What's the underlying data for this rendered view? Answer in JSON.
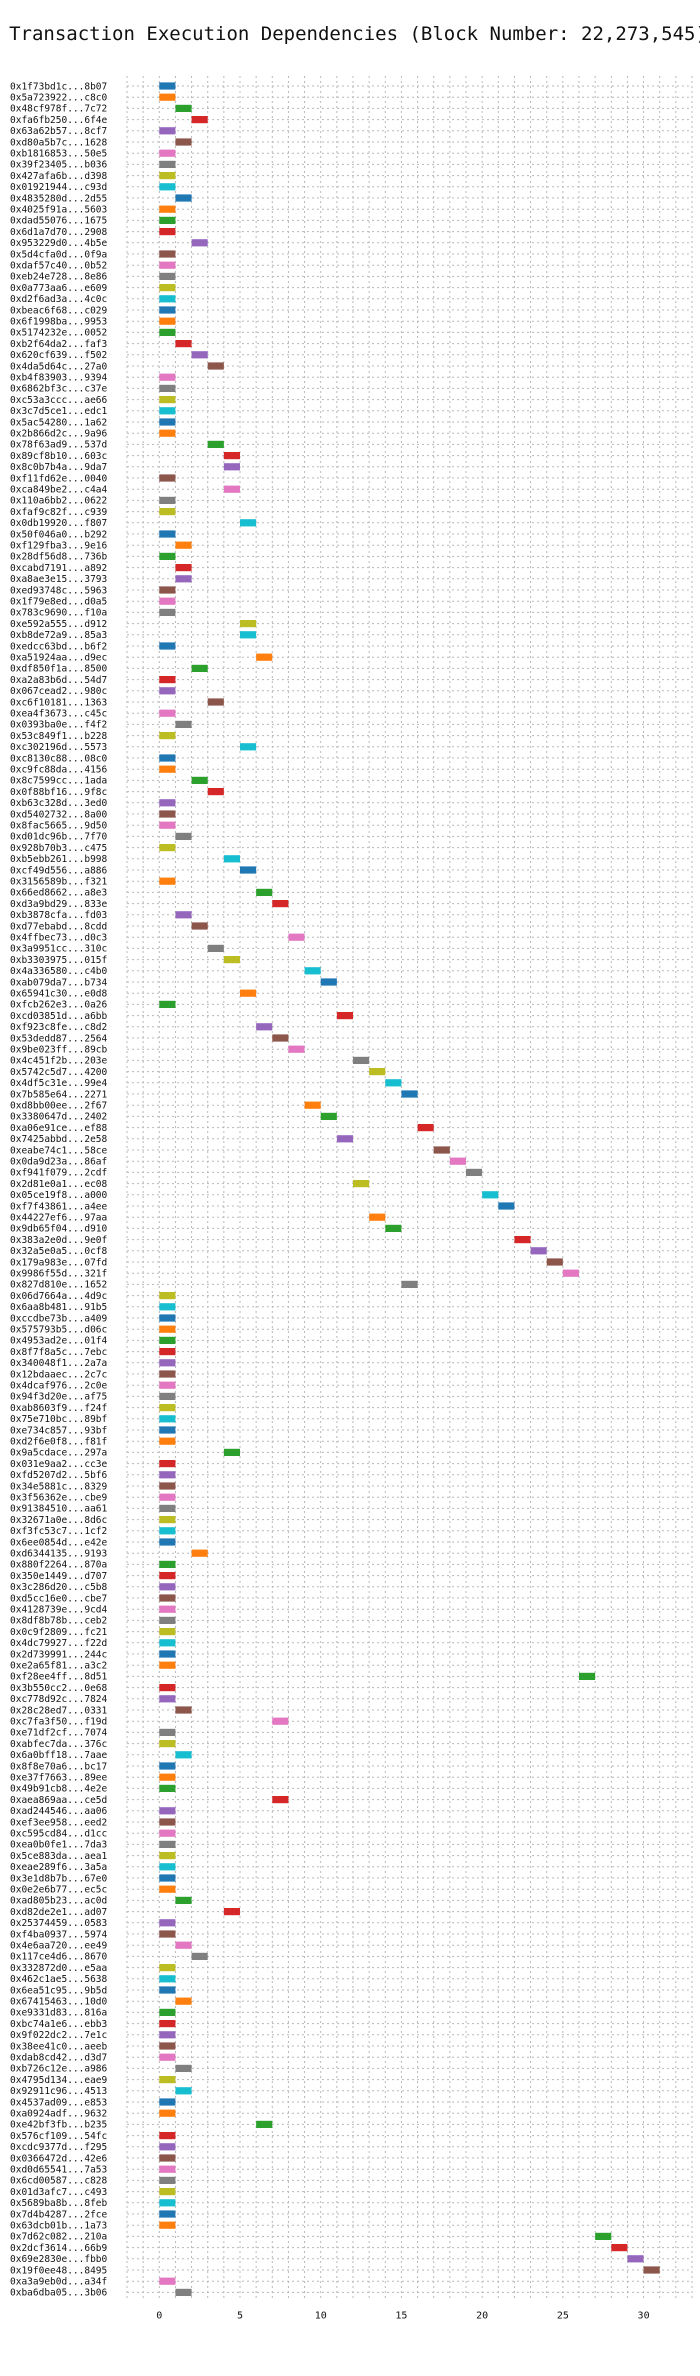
{
  "chart_data": {
    "type": "bar",
    "orientation": "horizontal-gantt",
    "title": "Transaction Execution Dependencies (Block Number: 22,273,545)",
    "xlim": [
      -2,
      33
    ],
    "xticks": [
      0,
      5,
      10,
      15,
      20,
      25,
      30
    ],
    "grid": true,
    "palette": [
      "#1f77b4",
      "#ff7f0e",
      "#2ca02c",
      "#d62728",
      "#9467bd",
      "#8c564b",
      "#e377c2",
      "#7f7f7f",
      "#bcbd22",
      "#17becf"
    ],
    "bar_width": 1.0,
    "transactions": [
      {
        "label": "0x1f73bd1c...8b07",
        "start": 0
      },
      {
        "label": "0x5a723922...c8c0",
        "start": 0
      },
      {
        "label": "0x48cf978f...7c72",
        "start": 1
      },
      {
        "label": "0xfa6fb250...6f4e",
        "start": 2
      },
      {
        "label": "0x63a62b57...8cf7",
        "start": 0
      },
      {
        "label": "0xd80a5b7c...1628",
        "start": 1
      },
      {
        "label": "0xb1816853...50e5",
        "start": 0
      },
      {
        "label": "0x39f23405...b036",
        "start": 0
      },
      {
        "label": "0x427afa6b...d398",
        "start": 0
      },
      {
        "label": "0x01921944...c93d",
        "start": 0
      },
      {
        "label": "0x4835280d...2d55",
        "start": 1
      },
      {
        "label": "0x4025f91a...5603",
        "start": 0
      },
      {
        "label": "0xdad55076...1675",
        "start": 0
      },
      {
        "label": "0x6d1a7d70...2908",
        "start": 0
      },
      {
        "label": "0x953229d0...4b5e",
        "start": 2
      },
      {
        "label": "0x5d4cfa0d...0f9a",
        "start": 0
      },
      {
        "label": "0xdaf57c40...0b52",
        "start": 0
      },
      {
        "label": "0xeb24e728...8e86",
        "start": 0
      },
      {
        "label": "0x0a773aa6...e609",
        "start": 0
      },
      {
        "label": "0xd2f6ad3a...4c0c",
        "start": 0
      },
      {
        "label": "0xbeac6f68...c029",
        "start": 0
      },
      {
        "label": "0x6f1998ba...9953",
        "start": 0
      },
      {
        "label": "0x5174232e...0052",
        "start": 0
      },
      {
        "label": "0xb2f64da2...faf3",
        "start": 1
      },
      {
        "label": "0x620cf639...f502",
        "start": 2
      },
      {
        "label": "0x4da5d64c...27a0",
        "start": 3
      },
      {
        "label": "0xb4f83903...9394",
        "start": 0
      },
      {
        "label": "0x6862bf3c...c37e",
        "start": 0
      },
      {
        "label": "0xc53a3ccc...ae66",
        "start": 0
      },
      {
        "label": "0x3c7d5ce1...edc1",
        "start": 0
      },
      {
        "label": "0x5ac54280...1a62",
        "start": 0
      },
      {
        "label": "0x2b866d2c...9a96",
        "start": 0
      },
      {
        "label": "0x78f63ad9...537d",
        "start": 3
      },
      {
        "label": "0x89cf8b10...603c",
        "start": 4
      },
      {
        "label": "0x8c0b7b4a...9da7",
        "start": 4
      },
      {
        "label": "0xf11fd62e...0040",
        "start": 0
      },
      {
        "label": "0xca849be2...c4a4",
        "start": 4
      },
      {
        "label": "0x110a6bb2...0622",
        "start": 0
      },
      {
        "label": "0xfaf9c82f...c939",
        "start": 0
      },
      {
        "label": "0x0db19920...f807",
        "start": 5
      },
      {
        "label": "0x50f046a0...b292",
        "start": 0
      },
      {
        "label": "0xf129fba3...9e16",
        "start": 1
      },
      {
        "label": "0x28df56d8...736b",
        "start": 0
      },
      {
        "label": "0xcabd7191...a892",
        "start": 1
      },
      {
        "label": "0xa8ae3e15...3793",
        "start": 1
      },
      {
        "label": "0xed93748c...5963",
        "start": 0
      },
      {
        "label": "0x1f79e8ed...d0a5",
        "start": 0
      },
      {
        "label": "0x783c9690...f10a",
        "start": 0
      },
      {
        "label": "0xe592a555...d912",
        "start": 5
      },
      {
        "label": "0xb8de72a9...85a3",
        "start": 5
      },
      {
        "label": "0xedcc63bd...b6f2",
        "start": 0
      },
      {
        "label": "0xa51924aa...d9ec",
        "start": 6
      },
      {
        "label": "0xdf850f1a...8500",
        "start": 2
      },
      {
        "label": "0xa2a83b6d...54d7",
        "start": 0
      },
      {
        "label": "0x067cead2...980c",
        "start": 0
      },
      {
        "label": "0xc6f10181...1363",
        "start": 3
      },
      {
        "label": "0xea4f3673...c45c",
        "start": 0
      },
      {
        "label": "0x0393ba0e...f4f2",
        "start": 1
      },
      {
        "label": "0x53c849f1...b228",
        "start": 0
      },
      {
        "label": "0xc302196d...5573",
        "start": 5
      },
      {
        "label": "0xc8130c88...08c0",
        "start": 0
      },
      {
        "label": "0xc9fc88da...4156",
        "start": 0
      },
      {
        "label": "0x8c7599cc...1ada",
        "start": 2
      },
      {
        "label": "0x0f88bf16...9f8c",
        "start": 3
      },
      {
        "label": "0xb63c328d...3ed0",
        "start": 0
      },
      {
        "label": "0xd5402732...8a00",
        "start": 0
      },
      {
        "label": "0x8fac5665...9d50",
        "start": 0
      },
      {
        "label": "0xd01dc96b...7f70",
        "start": 1
      },
      {
        "label": "0x928b70b3...c475",
        "start": 0
      },
      {
        "label": "0xb5ebb261...b998",
        "start": 4
      },
      {
        "label": "0xcf49d556...a886",
        "start": 5
      },
      {
        "label": "0x3156589b...f321",
        "start": 0
      },
      {
        "label": "0x66ed8662...a8e3",
        "start": 6
      },
      {
        "label": "0xd3a9bd29...833e",
        "start": 7
      },
      {
        "label": "0xb3878cfa...fd03",
        "start": 1
      },
      {
        "label": "0xd77ebabd...8cdd",
        "start": 2
      },
      {
        "label": "0x4ffbec73...d0c3",
        "start": 8
      },
      {
        "label": "0x3a9951cc...310c",
        "start": 3
      },
      {
        "label": "0xb3303975...015f",
        "start": 4
      },
      {
        "label": "0x4a336580...c4b0",
        "start": 9
      },
      {
        "label": "0xab079da7...b734",
        "start": 10
      },
      {
        "label": "0x65941c30...e0d8",
        "start": 5
      },
      {
        "label": "0xfcb262e3...0a26",
        "start": 0
      },
      {
        "label": "0xcd03851d...a6bb",
        "start": 11
      },
      {
        "label": "0xf923c8fe...c8d2",
        "start": 6
      },
      {
        "label": "0x53dedd87...2564",
        "start": 7
      },
      {
        "label": "0x9be023ff...89cb",
        "start": 8
      },
      {
        "label": "0x4c451f2b...203e",
        "start": 12
      },
      {
        "label": "0x5742c5d7...4200",
        "start": 13
      },
      {
        "label": "0x4df5c31e...99e4",
        "start": 14
      },
      {
        "label": "0x7b585e64...2271",
        "start": 15
      },
      {
        "label": "0xd8bb00ee...2f67",
        "start": 9
      },
      {
        "label": "0x3380647d...2402",
        "start": 10
      },
      {
        "label": "0xa06e91ce...ef88",
        "start": 16
      },
      {
        "label": "0x7425abbd...2e58",
        "start": 11
      },
      {
        "label": "0xeabe74c1...58ce",
        "start": 17
      },
      {
        "label": "0x0da9d23a...86af",
        "start": 18
      },
      {
        "label": "0xf941f079...2cdf",
        "start": 19
      },
      {
        "label": "0x2d81e0a1...ec08",
        "start": 12
      },
      {
        "label": "0x05ce19f8...a000",
        "start": 20
      },
      {
        "label": "0xf7f43861...a4ee",
        "start": 21
      },
      {
        "label": "0x44227ef6...97aa",
        "start": 13
      },
      {
        "label": "0x9db65f04...d910",
        "start": 14
      },
      {
        "label": "0x383a2e0d...9e0f",
        "start": 22
      },
      {
        "label": "0x32a5e0a5...0cf8",
        "start": 23
      },
      {
        "label": "0x179a983e...07fd",
        "start": 24
      },
      {
        "label": "0x9986f55d...321f",
        "start": 25
      },
      {
        "label": "0x827d810e...1652",
        "start": 15
      },
      {
        "label": "0x06d7664a...4d9c",
        "start": 0
      },
      {
        "label": "0x6aa8b481...91b5",
        "start": 0
      },
      {
        "label": "0xccdbe73b...a409",
        "start": 0
      },
      {
        "label": "0x575793b5...d06c",
        "start": 0
      },
      {
        "label": "0x4953ad2e...01f4",
        "start": 0
      },
      {
        "label": "0x8f7f8a5c...7ebc",
        "start": 0
      },
      {
        "label": "0x340048f1...2a7a",
        "start": 0
      },
      {
        "label": "0x12bdaaec...2c7c",
        "start": 0
      },
      {
        "label": "0x4dcaf976...2c0e",
        "start": 0
      },
      {
        "label": "0x94f3d20e...af75",
        "start": 0
      },
      {
        "label": "0xab8603f9...f24f",
        "start": 0
      },
      {
        "label": "0x75e710bc...89bf",
        "start": 0
      },
      {
        "label": "0xe734c857...93bf",
        "start": 0
      },
      {
        "label": "0xd2f6e0f8...f81f",
        "start": 0
      },
      {
        "label": "0x9a5cdace...297a",
        "start": 4
      },
      {
        "label": "0x031e9aa2...cc3e",
        "start": 0
      },
      {
        "label": "0xfd5207d2...5bf6",
        "start": 0
      },
      {
        "label": "0x34e5881c...8329",
        "start": 0
      },
      {
        "label": "0x3f56362e...cbe9",
        "start": 0
      },
      {
        "label": "0x91384510...aa61",
        "start": 0
      },
      {
        "label": "0x32671a0e...8d6c",
        "start": 0
      },
      {
        "label": "0xf3fc53c7...1cf2",
        "start": 0
      },
      {
        "label": "0x6ee0854d...e42e",
        "start": 0
      },
      {
        "label": "0xd6344135...9193",
        "start": 2
      },
      {
        "label": "0x880f2264...870a",
        "start": 0
      },
      {
        "label": "0x350e1449...d707",
        "start": 0
      },
      {
        "label": "0x3c286d20...c5b8",
        "start": 0
      },
      {
        "label": "0xd5cc16e0...cbe7",
        "start": 0
      },
      {
        "label": "0x4128739e...9cd4",
        "start": 0
      },
      {
        "label": "0x8df8b78b...ceb2",
        "start": 0
      },
      {
        "label": "0x0c9f2809...fc21",
        "start": 0
      },
      {
        "label": "0x4dc79927...f22d",
        "start": 0
      },
      {
        "label": "0x2d739991...244c",
        "start": 0
      },
      {
        "label": "0xe2a65f81...a3c2",
        "start": 0
      },
      {
        "label": "0xf28ee4ff...8d51",
        "start": 26
      },
      {
        "label": "0x3b550cc2...0e68",
        "start": 0
      },
      {
        "label": "0xc778d92c...7824",
        "start": 0
      },
      {
        "label": "0x28c28ed7...0331",
        "start": 1
      },
      {
        "label": "0xc7fa3f50...f19d",
        "start": 7
      },
      {
        "label": "0xe71df2cf...7074",
        "start": 0
      },
      {
        "label": "0xabfec7da...376c",
        "start": 0
      },
      {
        "label": "0x6a0bff18...7aae",
        "start": 1
      },
      {
        "label": "0x8f8e70a6...bc17",
        "start": 0
      },
      {
        "label": "0xe37f7663...89ee",
        "start": 0
      },
      {
        "label": "0x49b91cb8...4e2e",
        "start": 0
      },
      {
        "label": "0xaea869aa...ce5d",
        "start": 7
      },
      {
        "label": "0xad244546...aa06",
        "start": 0
      },
      {
        "label": "0xef3ee958...eed2",
        "start": 0
      },
      {
        "label": "0xc595cd84...d1cc",
        "start": 0
      },
      {
        "label": "0xea0b0fe1...7da3",
        "start": 0
      },
      {
        "label": "0x5ce883da...aea1",
        "start": 0
      },
      {
        "label": "0xeae289f6...3a5a",
        "start": 0
      },
      {
        "label": "0x3e1d8b7b...67e0",
        "start": 0
      },
      {
        "label": "0x0e2e6b77...ec5c",
        "start": 0
      },
      {
        "label": "0xad805b23...ac0d",
        "start": 1
      },
      {
        "label": "0xd82de2e1...ad07",
        "start": 4
      },
      {
        "label": "0x25374459...0583",
        "start": 0
      },
      {
        "label": "0xf4ba0937...5974",
        "start": 0
      },
      {
        "label": "0x4e6aa720...ee49",
        "start": 1
      },
      {
        "label": "0x117ce4d6...8670",
        "start": 2
      },
      {
        "label": "0x332872d0...e5aa",
        "start": 0
      },
      {
        "label": "0x462c1ae5...5638",
        "start": 0
      },
      {
        "label": "0x6ea51c95...9b5d",
        "start": 0
      },
      {
        "label": "0x67415463...10d0",
        "start": 1
      },
      {
        "label": "0xe9331d83...816a",
        "start": 0
      },
      {
        "label": "0xbc74a1e6...ebb3",
        "start": 0
      },
      {
        "label": "0x9f022dc2...7e1c",
        "start": 0
      },
      {
        "label": "0x38ee41c0...aeeb",
        "start": 0
      },
      {
        "label": "0xdab8cd42...d3d7",
        "start": 0
      },
      {
        "label": "0xb726c12e...a986",
        "start": 1
      },
      {
        "label": "0x4795d134...eae9",
        "start": 0
      },
      {
        "label": "0x92911c96...4513",
        "start": 1
      },
      {
        "label": "0x4537ad09...e853",
        "start": 0
      },
      {
        "label": "0xa0924adf...9632",
        "start": 0
      },
      {
        "label": "0xe42bf3fb...b235",
        "start": 6
      },
      {
        "label": "0x576cf109...54fc",
        "start": 0
      },
      {
        "label": "0xcdc9377d...f295",
        "start": 0
      },
      {
        "label": "0x0366472d...42e6",
        "start": 0
      },
      {
        "label": "0xd0d65541...7a53",
        "start": 0
      },
      {
        "label": "0x6cd00587...c828",
        "start": 0
      },
      {
        "label": "0x01d3afc7...c493",
        "start": 0
      },
      {
        "label": "0x5689ba8b...8feb",
        "start": 0
      },
      {
        "label": "0x7d4b4287...2fce",
        "start": 0
      },
      {
        "label": "0x63dcb01b...1a73",
        "start": 0
      },
      {
        "label": "0x7d62c082...210a",
        "start": 27
      },
      {
        "label": "0x2dcf3614...66b9",
        "start": 28
      },
      {
        "label": "0x69e2830e...fbb0",
        "start": 29
      },
      {
        "label": "0x19f0ee48...8495",
        "start": 30
      },
      {
        "label": "0xa3a9eb0d...a34f",
        "start": 0
      },
      {
        "label": "0xba6dba05...3b06",
        "start": 1
      }
    ]
  }
}
